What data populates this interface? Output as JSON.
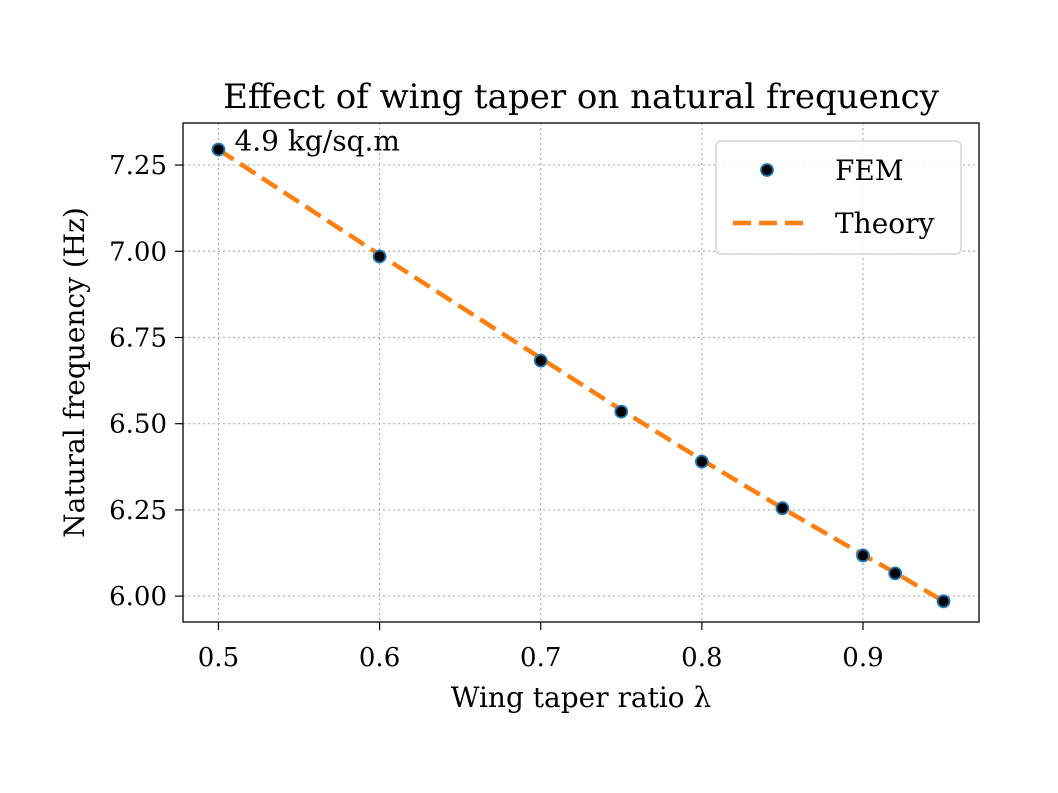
{
  "chart_data": {
    "type": "line",
    "title": "Effect of wing taper on natural frequency",
    "xlabel": "Wing taper ratio λ",
    "ylabel": "Natural frequency (Hz)",
    "xlim": [
      0.478,
      0.972
    ],
    "ylim": [
      5.925,
      7.372
    ],
    "xticks": [
      0.5,
      0.6,
      0.7,
      0.8,
      0.9
    ],
    "xtick_labels": [
      "0.5",
      "0.6",
      "0.7",
      "0.8",
      "0.9"
    ],
    "yticks": [
      6.0,
      6.25,
      6.5,
      6.75,
      7.0,
      7.25
    ],
    "ytick_labels": [
      "6.00",
      "6.25",
      "6.50",
      "6.75",
      "7.00",
      "7.25"
    ],
    "grid": true,
    "legend_position": "top-right",
    "series": [
      {
        "name": "FEM",
        "kind": "scatter",
        "color": "#000000",
        "edge_color": "#1f77b4",
        "x": [
          0.5,
          0.6,
          0.7,
          0.75,
          0.8,
          0.85,
          0.9,
          0.92,
          0.95
        ],
        "y": [
          7.295,
          6.985,
          6.683,
          6.535,
          6.39,
          6.255,
          6.118,
          6.066,
          5.985
        ]
      },
      {
        "name": "Theory",
        "kind": "line",
        "style": "dashed",
        "color": "#ff7f0e",
        "x": [
          0.5,
          0.6,
          0.7,
          0.75,
          0.8,
          0.85,
          0.9,
          0.92,
          0.95
        ],
        "y": [
          7.295,
          6.99,
          6.69,
          6.54,
          6.395,
          6.255,
          6.12,
          6.068,
          5.985
        ]
      }
    ],
    "annotations": [
      {
        "text": "4.9 kg/sq.m",
        "x": 0.5,
        "y": 7.295
      }
    ]
  }
}
